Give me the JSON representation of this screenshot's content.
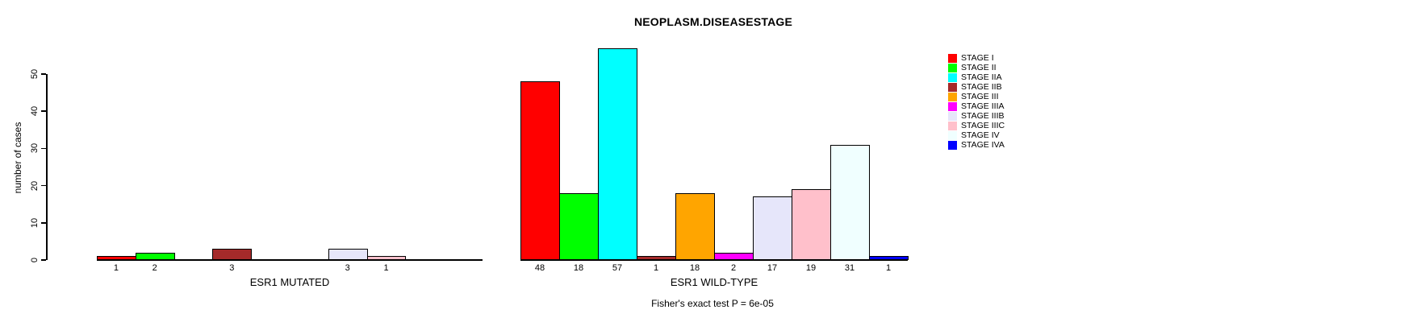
{
  "chart_data": {
    "type": "bar",
    "title": "NEOPLASM.DISEASESTAGE",
    "ylabel": "number of cases",
    "ylim": [
      0,
      57
    ],
    "yticks": [
      0,
      10,
      20,
      30,
      40,
      50
    ],
    "grid": false,
    "legend_position": "right",
    "categories": [
      "STAGE I",
      "STAGE II",
      "STAGE IIA",
      "STAGE IIB",
      "STAGE III",
      "STAGE IIIA",
      "STAGE IIIB",
      "STAGE IIIC",
      "STAGE IV",
      "STAGE IVA"
    ],
    "colors": [
      "#FF0000",
      "#00FF00",
      "#00FFFF",
      "#A52A2A",
      "#FFA500",
      "#FF00FF",
      "#E6E6FA",
      "#FFC0CB",
      "#F0FFFF",
      "#0000FF"
    ],
    "legend": [
      {
        "label": "STAGE I",
        "color": "#FF0000"
      },
      {
        "label": "STAGE II",
        "color": "#00FF00"
      },
      {
        "label": "STAGE IIA",
        "color": "#00FFFF"
      },
      {
        "label": "STAGE IIB",
        "color": "#A52A2A"
      },
      {
        "label": "STAGE III",
        "color": "#FFA500"
      },
      {
        "label": "STAGE IIIA",
        "color": "#FF00FF"
      },
      {
        "label": "STAGE IIIB",
        "color": "#E6E6FA"
      },
      {
        "label": "STAGE IIIC",
        "color": "#FFC0CB"
      },
      {
        "label": "STAGE IV",
        "color": "#F0FFFF"
      },
      {
        "label": "STAGE IVA",
        "color": "#0000FF"
      }
    ],
    "panels": [
      {
        "xlabel": "ESR1 MUTATED",
        "values": [
          1,
          2,
          0,
          3,
          0,
          0,
          3,
          1,
          0,
          0
        ],
        "bar_labels": [
          "1",
          "2",
          "",
          "3",
          "",
          "",
          "3",
          "1",
          "",
          ""
        ]
      },
      {
        "xlabel": "ESR1 WILD-TYPE",
        "values": [
          48,
          18,
          57,
          1,
          18,
          2,
          17,
          19,
          31,
          1
        ],
        "bar_labels": [
          "48",
          "18",
          "57",
          "1",
          "18",
          "2",
          "17",
          "19",
          "31",
          "1"
        ]
      }
    ],
    "footnote": "Fisher's exact test P = 6e-05"
  }
}
